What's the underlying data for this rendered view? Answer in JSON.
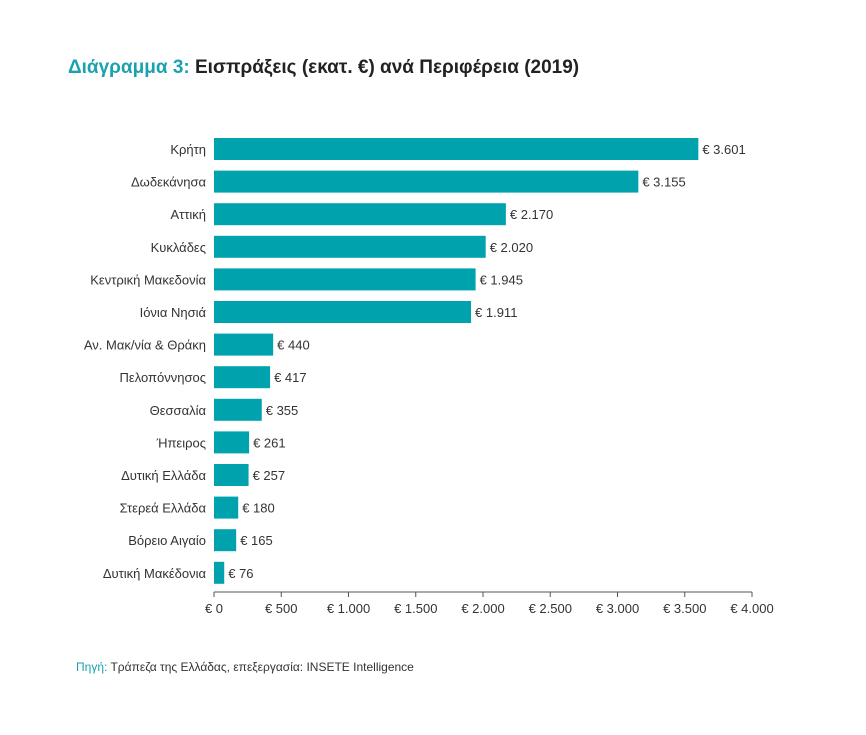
{
  "title": {
    "prefix": "Διάγραμμα 3:",
    "text": " Εισπράξεις (εκατ. €) ανά Περιφέρεια (2019)"
  },
  "source": {
    "label": "Πηγή:",
    "text": " Τράπεζα της Ελλάδας, επεξεργασία: INSETE Intelligence"
  },
  "colors": {
    "bar": "#00a3ad",
    "accent": "#1aa3ad",
    "axis": "#555555",
    "text": "#333333"
  },
  "chart_data": {
    "type": "bar",
    "orientation": "horizontal",
    "categories": [
      "Κρήτη",
      "Δωδεκάνησα",
      "Αττική",
      "Κυκλάδες",
      "Κεντρική Μακεδονία",
      "Ιόνια Νησιά",
      "Αν. Μακ/νία & Θράκη",
      "Πελοπόννησος",
      "Θεσσαλία",
      "Ήπειρος",
      "Δυτική Ελλάδα",
      "Στερεά Ελλάδα",
      "Βόρειο Αιγαίο",
      "Δυτική Μακέδονια"
    ],
    "values": [
      3601,
      3155,
      2170,
      2020,
      1945,
      1911,
      440,
      417,
      355,
      261,
      257,
      180,
      165,
      76
    ],
    "value_labels": [
      "€ 3.601",
      "€ 3.155",
      "€ 2.170",
      "€ 2.020",
      "€ 1.945",
      "€ 1.911",
      "€ 440",
      "€ 417",
      "€ 355",
      "€ 261",
      "€ 257",
      "€ 180",
      "€ 165",
      "€ 76"
    ],
    "xlim": [
      0,
      4000
    ],
    "xticks": [
      0,
      500,
      1000,
      1500,
      2000,
      2500,
      3000,
      3500,
      4000
    ],
    "xtick_labels": [
      "€ 0",
      "€ 500",
      "€ 1.000",
      "€ 1.500",
      "€ 2.000",
      "€ 2.500",
      "€ 3.000",
      "€ 3.500",
      "€ 4.000"
    ],
    "grid": false
  }
}
